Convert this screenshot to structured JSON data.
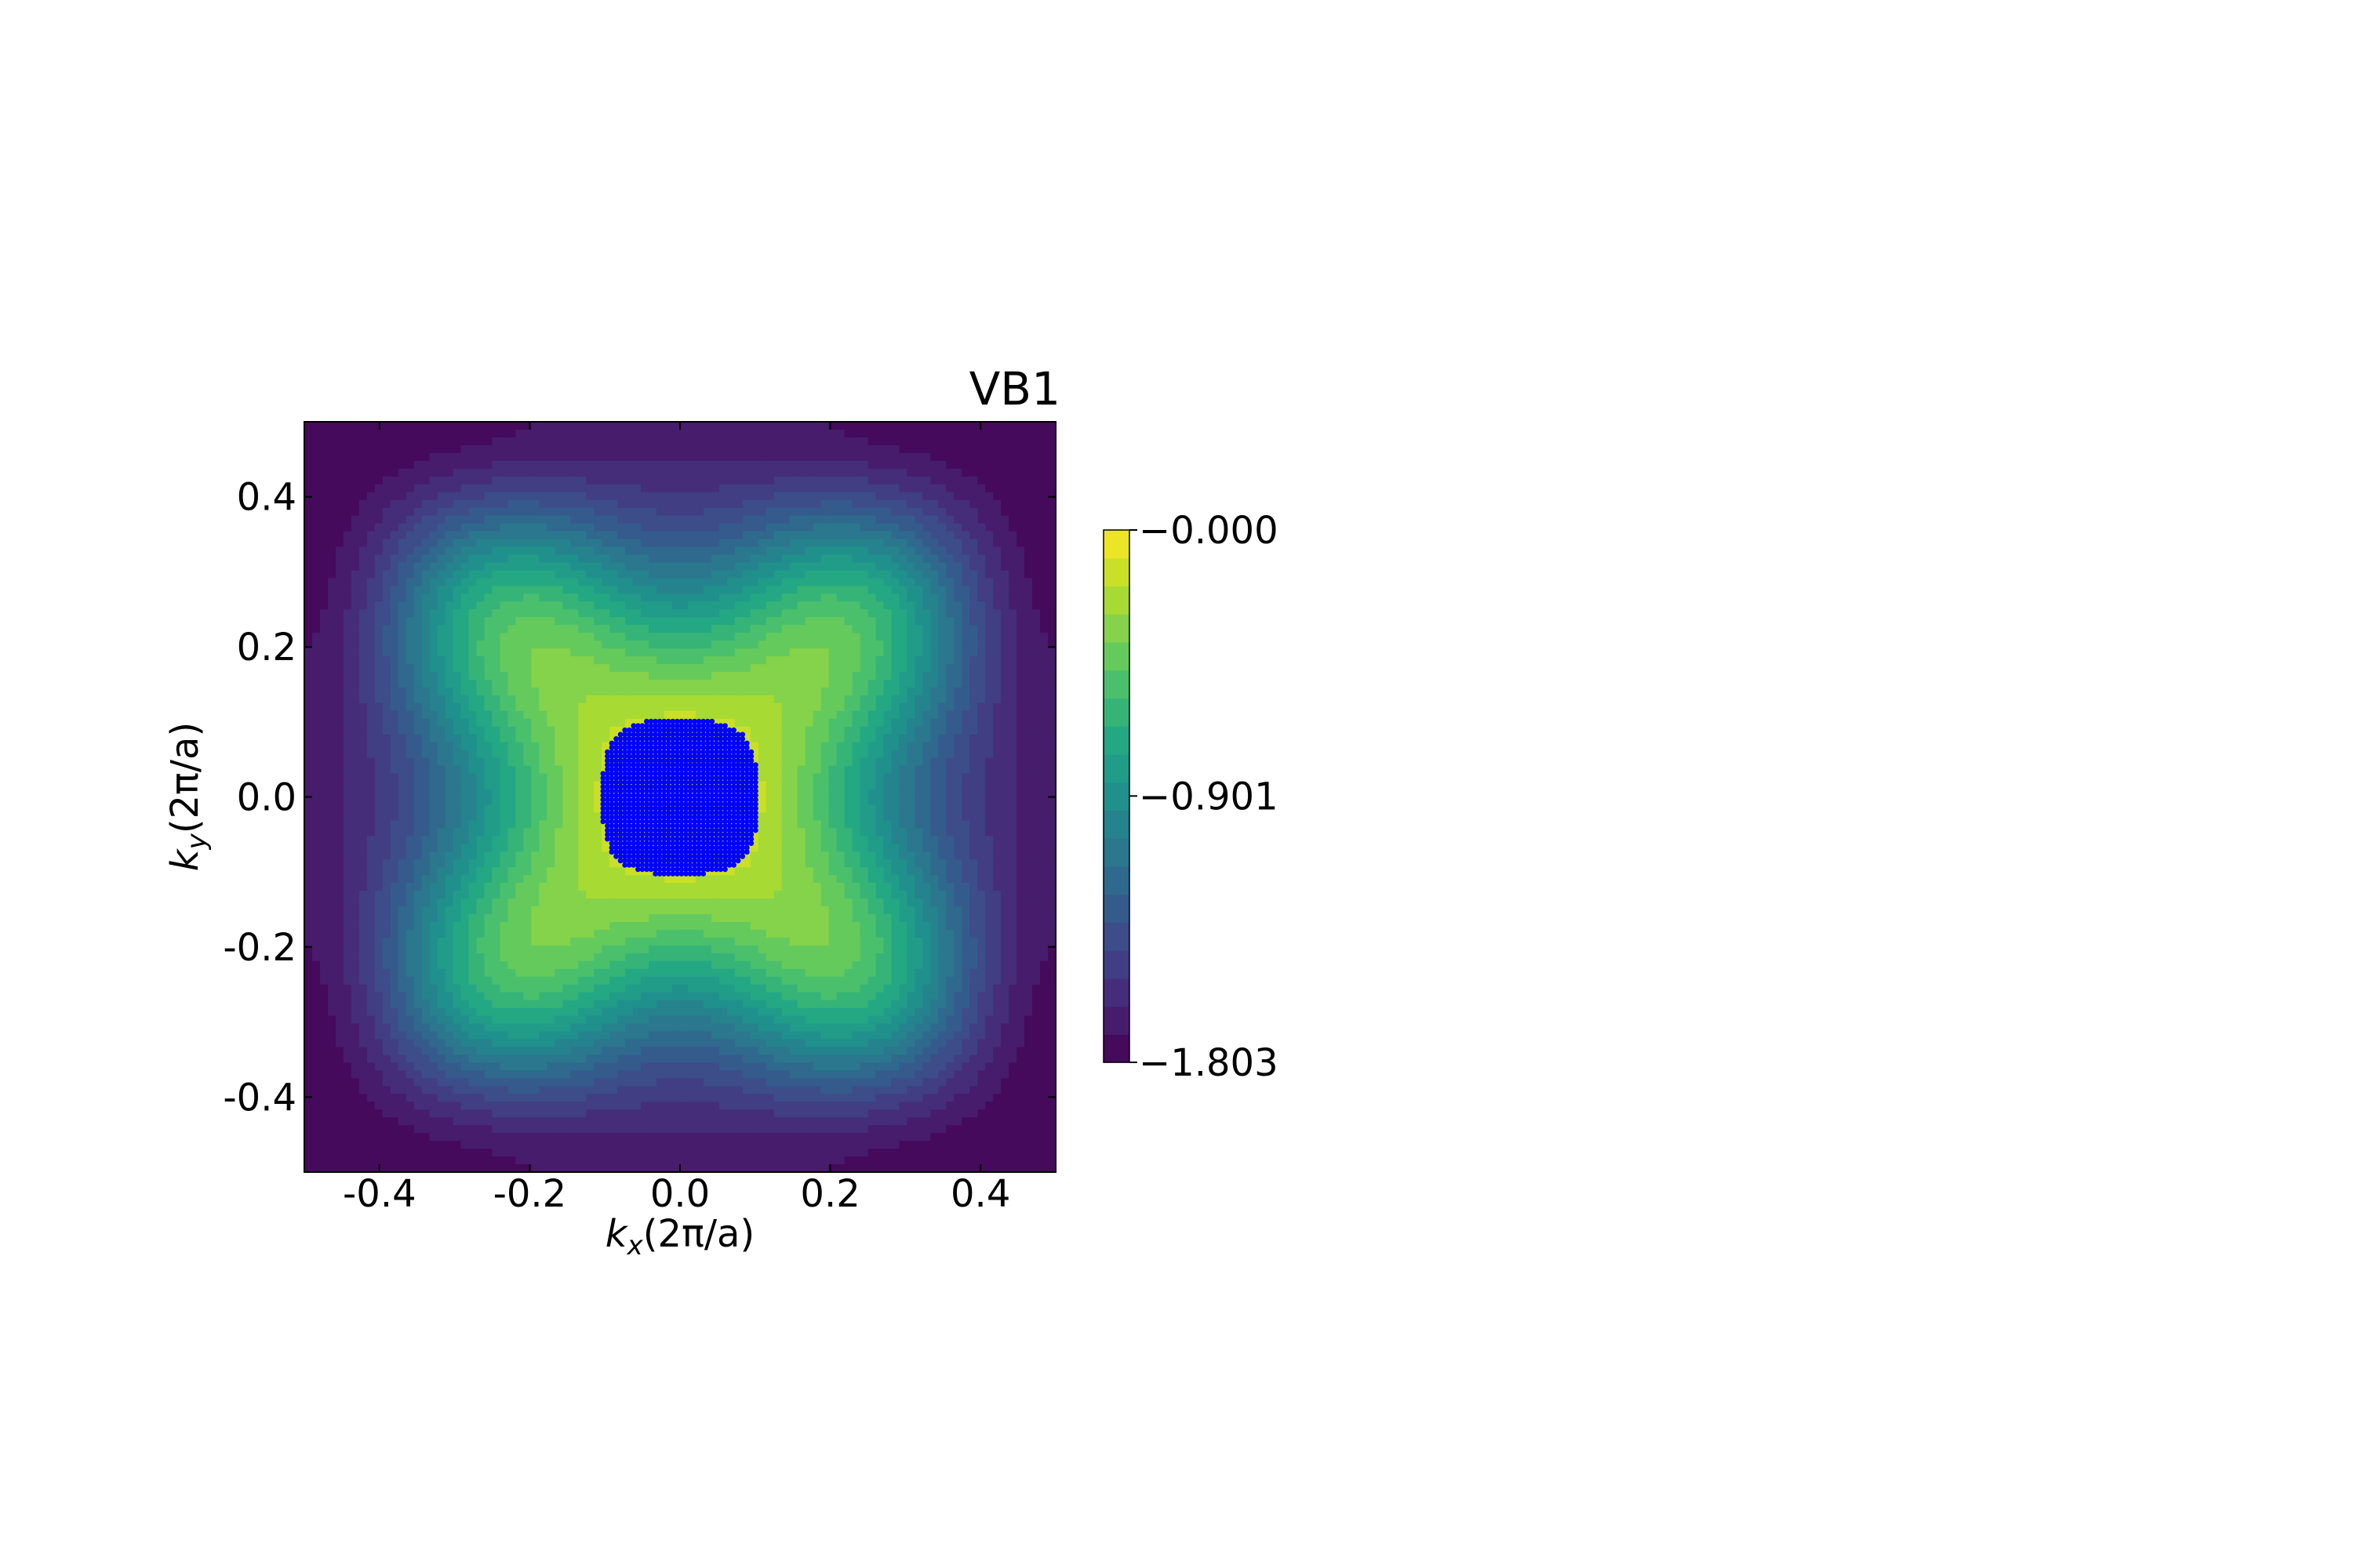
{
  "chart_data": {
    "type": "heatmap",
    "title": "VB1",
    "xlabel": {
      "k": "k",
      "sub": "x",
      "rest": "(2π/a)"
    },
    "ylabel": {
      "k": "k",
      "sub": "y",
      "rest": "(2π/a)"
    },
    "xlim": [
      -0.5,
      0.5
    ],
    "ylim": [
      -0.5,
      0.5
    ],
    "x_ticks": [
      -0.4,
      -0.2,
      0.0,
      0.2,
      0.4
    ],
    "x_tick_labels": [
      "-0.4",
      "-0.2",
      "0.0",
      "0.2",
      "0.4"
    ],
    "y_ticks": [
      0.4,
      0.2,
      0.0,
      -0.2,
      -0.4
    ],
    "y_tick_labels": [
      "0.4",
      "0.2",
      "0.0",
      "-0.2",
      "-0.4"
    ],
    "colorbar": {
      "range": [
        -1.803,
        0.0
      ],
      "ticks": [
        0.0,
        -0.901,
        -1.803
      ],
      "tick_labels": [
        "−0.000",
        "−0.901",
        "−1.803"
      ],
      "levels": 19,
      "colormap": "viridis"
    },
    "marker_color": "#0000ff",
    "marker_region": "k-points inside the X-shaped region near the band maximum (energy ≳ −0.17)",
    "grid": false,
    "legend": "none"
  }
}
